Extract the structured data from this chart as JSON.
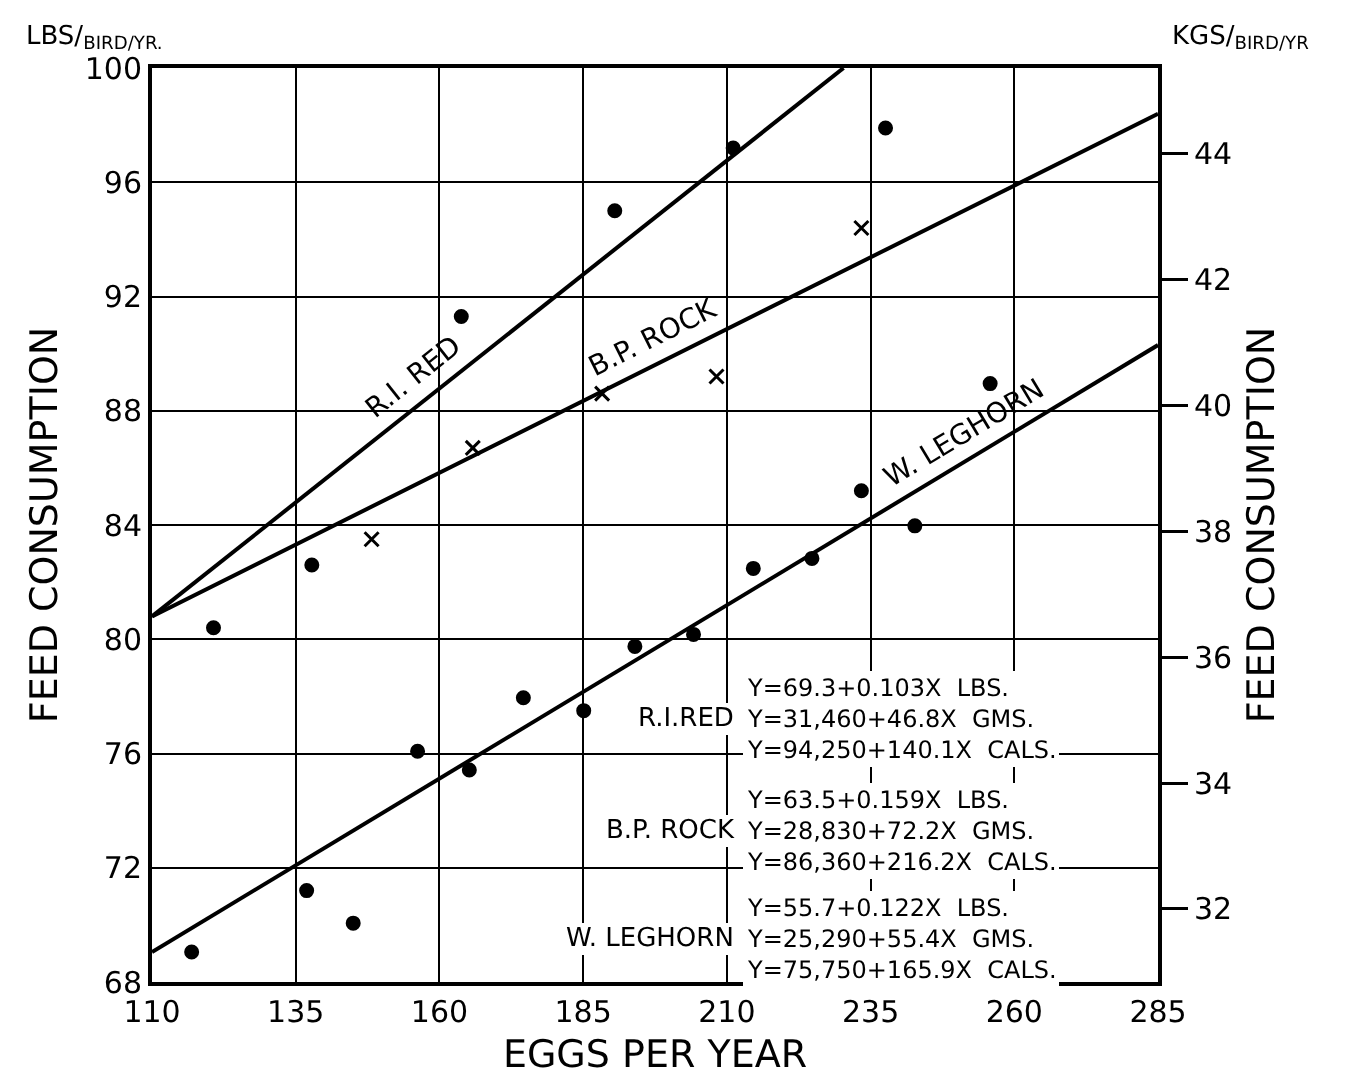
{
  "chart_data": {
    "type": "scatter",
    "xlabel": "EGGS PER YEAR",
    "ylabel": "FEED CONSUMPTION",
    "y2label": "FEED CONSUMPTION",
    "xlim": [
      110,
      285
    ],
    "xticks": [
      110,
      135,
      160,
      185,
      210,
      235,
      260,
      285
    ],
    "ylim": [
      68,
      100
    ],
    "yticks": [
      68,
      72,
      76,
      80,
      84,
      88,
      92,
      96,
      100
    ],
    "y2lim": [
      30.84,
      45.36
    ],
    "y2ticks": [
      32,
      34,
      36,
      38,
      40,
      42,
      44
    ],
    "grid": true,
    "legend": false,
    "series": [
      {
        "name": "R.I. RED",
        "type": "line",
        "color": "#000000",
        "x": [
          110,
          230.3
        ],
        "values": [
          80.8,
          100
        ]
      },
      {
        "name": "B.P. ROCK",
        "type": "line",
        "color": "#000000",
        "x": [
          110,
          285
        ],
        "values": [
          80.8,
          98.4
        ]
      },
      {
        "name": "W. LEGHORN",
        "type": "line",
        "color": "#000000",
        "x": [
          110,
          285
        ],
        "values": [
          69.05,
          90.3
        ]
      },
      {
        "type": "scatter",
        "marker": "circle",
        "color": "#000000",
        "x": [
          120.7,
          137.8,
          163.8,
          190.5,
          211.1,
          237.6
        ],
        "values": [
          80.4,
          82.6,
          91.3,
          95.0,
          97.2,
          97.9
        ]
      },
      {
        "type": "scatter",
        "marker": "cross",
        "color": "#000000",
        "x": [
          148.2,
          165.8,
          188.3,
          208.2,
          233.4
        ],
        "values": [
          83.5,
          86.7,
          88.6,
          89.2,
          94.4
        ]
      },
      {
        "type": "scatter",
        "marker": "circle",
        "color": "#000000",
        "x": [
          116.9,
          136.9,
          145.0,
          156.2,
          165.2,
          174.6,
          185.1,
          194.0,
          204.2,
          214.6,
          224.8,
          233.4,
          242.7,
          255.8
        ],
        "values": [
          69.05,
          71.2,
          70.06,
          76.08,
          75.42,
          77.95,
          77.5,
          79.75,
          80.17,
          82.48,
          82.83,
          85.2,
          83.97,
          88.95
        ]
      }
    ],
    "annotations": [
      "LBS/$_{BIRD/YR.}$",
      "KGS/$_{BIRD/YR}$",
      "R.I.RED",
      "Y=69.3+0.103X  LBS.\nY=31,460+46.8X  GMS.\nY=94,250+140.1X  CALS.",
      "B.P. ROCK",
      "Y=63.5+0.159X  LBS.\nY=28,830+72.2X  GMS.\nY=86,360+216.2X  CALS.",
      "W. LEGHORN",
      "Y=55.7+0.122X  LBS.\nY=25,290+55.4X  GMS.\nY=75,750+165.9X  CALS."
    ]
  }
}
